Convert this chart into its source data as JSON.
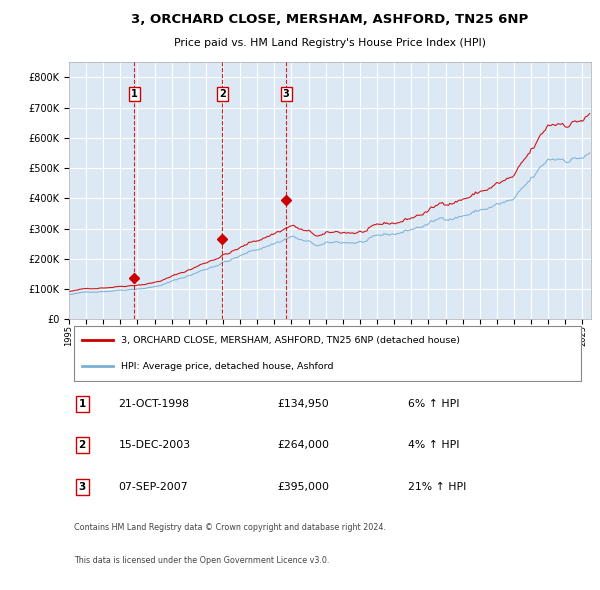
{
  "title": "3, ORCHARD CLOSE, MERSHAM, ASHFORD, TN25 6NP",
  "subtitle": "Price paid vs. HM Land Registry's House Price Index (HPI)",
  "legend_line1": "3, ORCHARD CLOSE, MERSHAM, ASHFORD, TN25 6NP (detached house)",
  "legend_line2": "HPI: Average price, detached house, Ashford",
  "sales": [
    {
      "num": 1,
      "date_label": "21-OCT-1998",
      "date_x": 1998.8,
      "price": 134950,
      "pct": "6%"
    },
    {
      "num": 2,
      "date_label": "15-DEC-2003",
      "date_x": 2003.96,
      "price": 264000,
      "pct": "4%"
    },
    {
      "num": 3,
      "date_label": "07-SEP-2007",
      "date_x": 2007.69,
      "price": 395000,
      "pct": "21%"
    }
  ],
  "plot_bg": "#dce9f5",
  "hpi_color": "#7ab0d4",
  "price_color": "#cc0000",
  "vline_color": "#cc0000",
  "grid_color": "#ffffff",
  "ylim": [
    0,
    850000
  ],
  "xlim_start": 1995.0,
  "xlim_end": 2025.5,
  "footnote1": "Contains HM Land Registry data © Crown copyright and database right 2024.",
  "footnote2": "This data is licensed under the Open Government Licence v3.0."
}
